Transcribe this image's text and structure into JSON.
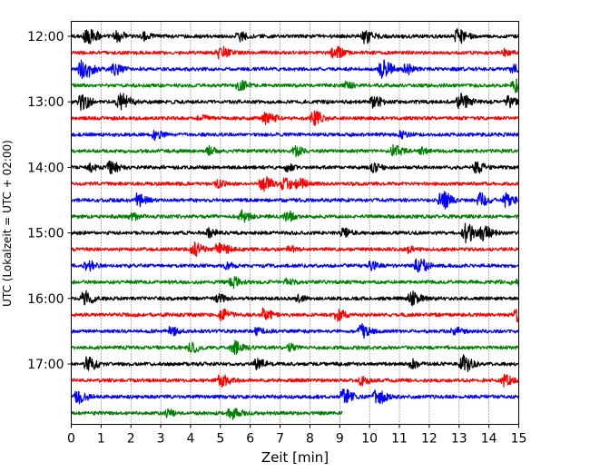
{
  "chart_data": {
    "type": "line",
    "xlabel": "Zeit  [min]",
    "ylabel": "UTC (Lokalzeit = UTC + 02:00)",
    "xlim": [
      0,
      15
    ],
    "x_ticks": [
      "0",
      "1",
      "2",
      "3",
      "4",
      "5",
      "6",
      "7",
      "8",
      "9",
      "10",
      "11",
      "12",
      "13",
      "14",
      "15"
    ],
    "y_ticks": [
      "12:00",
      "13:00",
      "14:00",
      "15:00",
      "16:00",
      "17:00"
    ],
    "grid": "vertical dotted",
    "trace_interval_min": 15,
    "color_cycle": [
      "#000000",
      "#ff0000",
      "#0000ff",
      "#008000"
    ],
    "traces": [
      {
        "start": "12:00",
        "end_min": 15,
        "events": [
          [
            0.5,
            0.8
          ],
          [
            1.5,
            0.5
          ],
          [
            9.8,
            0.7
          ],
          [
            12.9,
            0.7
          ],
          [
            5.6,
            0.4
          ],
          [
            2.4,
            0.35
          ]
        ]
      },
      {
        "start": "12:15",
        "end_min": 15,
        "events": [
          [
            4.95,
            0.6
          ],
          [
            8.8,
            0.6
          ],
          [
            14.5,
            0.3
          ]
        ]
      },
      {
        "start": "12:30",
        "end_min": 15,
        "events": [
          [
            0.35,
            0.9
          ],
          [
            1.4,
            0.6
          ],
          [
            10.4,
            0.8
          ],
          [
            11.2,
            0.5
          ],
          [
            14.8,
            0.4
          ]
        ]
      },
      {
        "start": "12:45",
        "end_min": 15,
        "events": [
          [
            5.6,
            0.5
          ],
          [
            14.85,
            0.8
          ],
          [
            9.2,
            0.3
          ]
        ]
      },
      {
        "start": "13:00",
        "end_min": 15,
        "events": [
          [
            0.3,
            0.7
          ],
          [
            1.6,
            0.8
          ],
          [
            10.1,
            0.6
          ],
          [
            13.0,
            0.8
          ],
          [
            14.6,
            0.5
          ]
        ]
      },
      {
        "start": "13:15",
        "end_min": 15,
        "events": [
          [
            6.5,
            0.6
          ],
          [
            8.1,
            0.7
          ],
          [
            4.3,
            0.3
          ]
        ]
      },
      {
        "start": "13:30",
        "end_min": 15,
        "events": [
          [
            2.8,
            0.4
          ],
          [
            11.0,
            0.3
          ]
        ]
      },
      {
        "start": "13:45",
        "end_min": 15,
        "events": [
          [
            4.6,
            0.4
          ],
          [
            7.5,
            0.4
          ],
          [
            10.8,
            0.5
          ],
          [
            11.7,
            0.3
          ]
        ]
      },
      {
        "start": "14:00",
        "end_min": 15,
        "events": [
          [
            1.3,
            0.6
          ],
          [
            0.6,
            0.4
          ],
          [
            10.1,
            0.4
          ],
          [
            13.5,
            0.6
          ],
          [
            7.2,
            0.3
          ]
        ]
      },
      {
        "start": "14:15",
        "end_min": 15,
        "events": [
          [
            6.4,
            0.7
          ],
          [
            7.1,
            0.6
          ],
          [
            7.6,
            0.5
          ],
          [
            4.9,
            0.3
          ]
        ]
      },
      {
        "start": "14:30",
        "end_min": 15,
        "events": [
          [
            2.2,
            0.6
          ],
          [
            12.4,
            0.8
          ],
          [
            13.7,
            0.6
          ],
          [
            14.55,
            0.6
          ]
        ]
      },
      {
        "start": "14:45",
        "end_min": 15,
        "events": [
          [
            5.7,
            0.5
          ],
          [
            7.2,
            0.5
          ],
          [
            2.0,
            0.3
          ]
        ]
      },
      {
        "start": "15:00",
        "end_min": 15,
        "events": [
          [
            4.6,
            0.4
          ],
          [
            9.1,
            0.4
          ],
          [
            13.2,
            0.9
          ],
          [
            13.8,
            0.6
          ]
        ]
      },
      {
        "start": "15:15",
        "end_min": 15,
        "events": [
          [
            4.1,
            0.6
          ],
          [
            4.9,
            0.7
          ],
          [
            7.3,
            0.3
          ],
          [
            11.3,
            0.3
          ]
        ]
      },
      {
        "start": "15:30",
        "end_min": 15,
        "events": [
          [
            0.5,
            0.5
          ],
          [
            10.0,
            0.4
          ],
          [
            11.6,
            0.7
          ],
          [
            5.2,
            0.3
          ]
        ]
      },
      {
        "start": "15:45",
        "end_min": 15,
        "events": [
          [
            5.4,
            0.5
          ],
          [
            7.2,
            0.3
          ],
          [
            14.8,
            0.3
          ]
        ]
      },
      {
        "start": "16:00",
        "end_min": 15,
        "events": [
          [
            0.4,
            0.7
          ],
          [
            4.9,
            0.4
          ],
          [
            11.4,
            0.6
          ],
          [
            7.6,
            0.3
          ]
        ]
      },
      {
        "start": "16:15",
        "end_min": 15,
        "events": [
          [
            5.0,
            0.6
          ],
          [
            6.4,
            0.6
          ],
          [
            8.9,
            0.5
          ],
          [
            14.9,
            0.6
          ]
        ]
      },
      {
        "start": "16:30",
        "end_min": 15,
        "events": [
          [
            3.3,
            0.4
          ],
          [
            9.7,
            0.6
          ],
          [
            12.8,
            0.5
          ],
          [
            6.2,
            0.3
          ]
        ]
      },
      {
        "start": "16:45",
        "end_min": 15,
        "events": [
          [
            4.0,
            0.5
          ],
          [
            5.4,
            0.7
          ],
          [
            7.3,
            0.3
          ]
        ]
      },
      {
        "start": "17:00",
        "end_min": 15,
        "events": [
          [
            0.5,
            0.7
          ],
          [
            6.2,
            0.5
          ],
          [
            11.4,
            0.4
          ],
          [
            13.1,
            0.8
          ]
        ]
      },
      {
        "start": "17:15",
        "end_min": 15,
        "events": [
          [
            5.0,
            0.6
          ],
          [
            9.7,
            0.4
          ],
          [
            14.5,
            0.5
          ]
        ]
      },
      {
        "start": "17:30",
        "end_min": 15,
        "events": [
          [
            0.2,
            0.6
          ],
          [
            9.1,
            0.7
          ],
          [
            10.2,
            0.7
          ]
        ]
      },
      {
        "start": "17:45",
        "end_min": 9.1,
        "events": [
          [
            5.3,
            0.7
          ],
          [
            3.2,
            0.3
          ]
        ]
      }
    ]
  }
}
